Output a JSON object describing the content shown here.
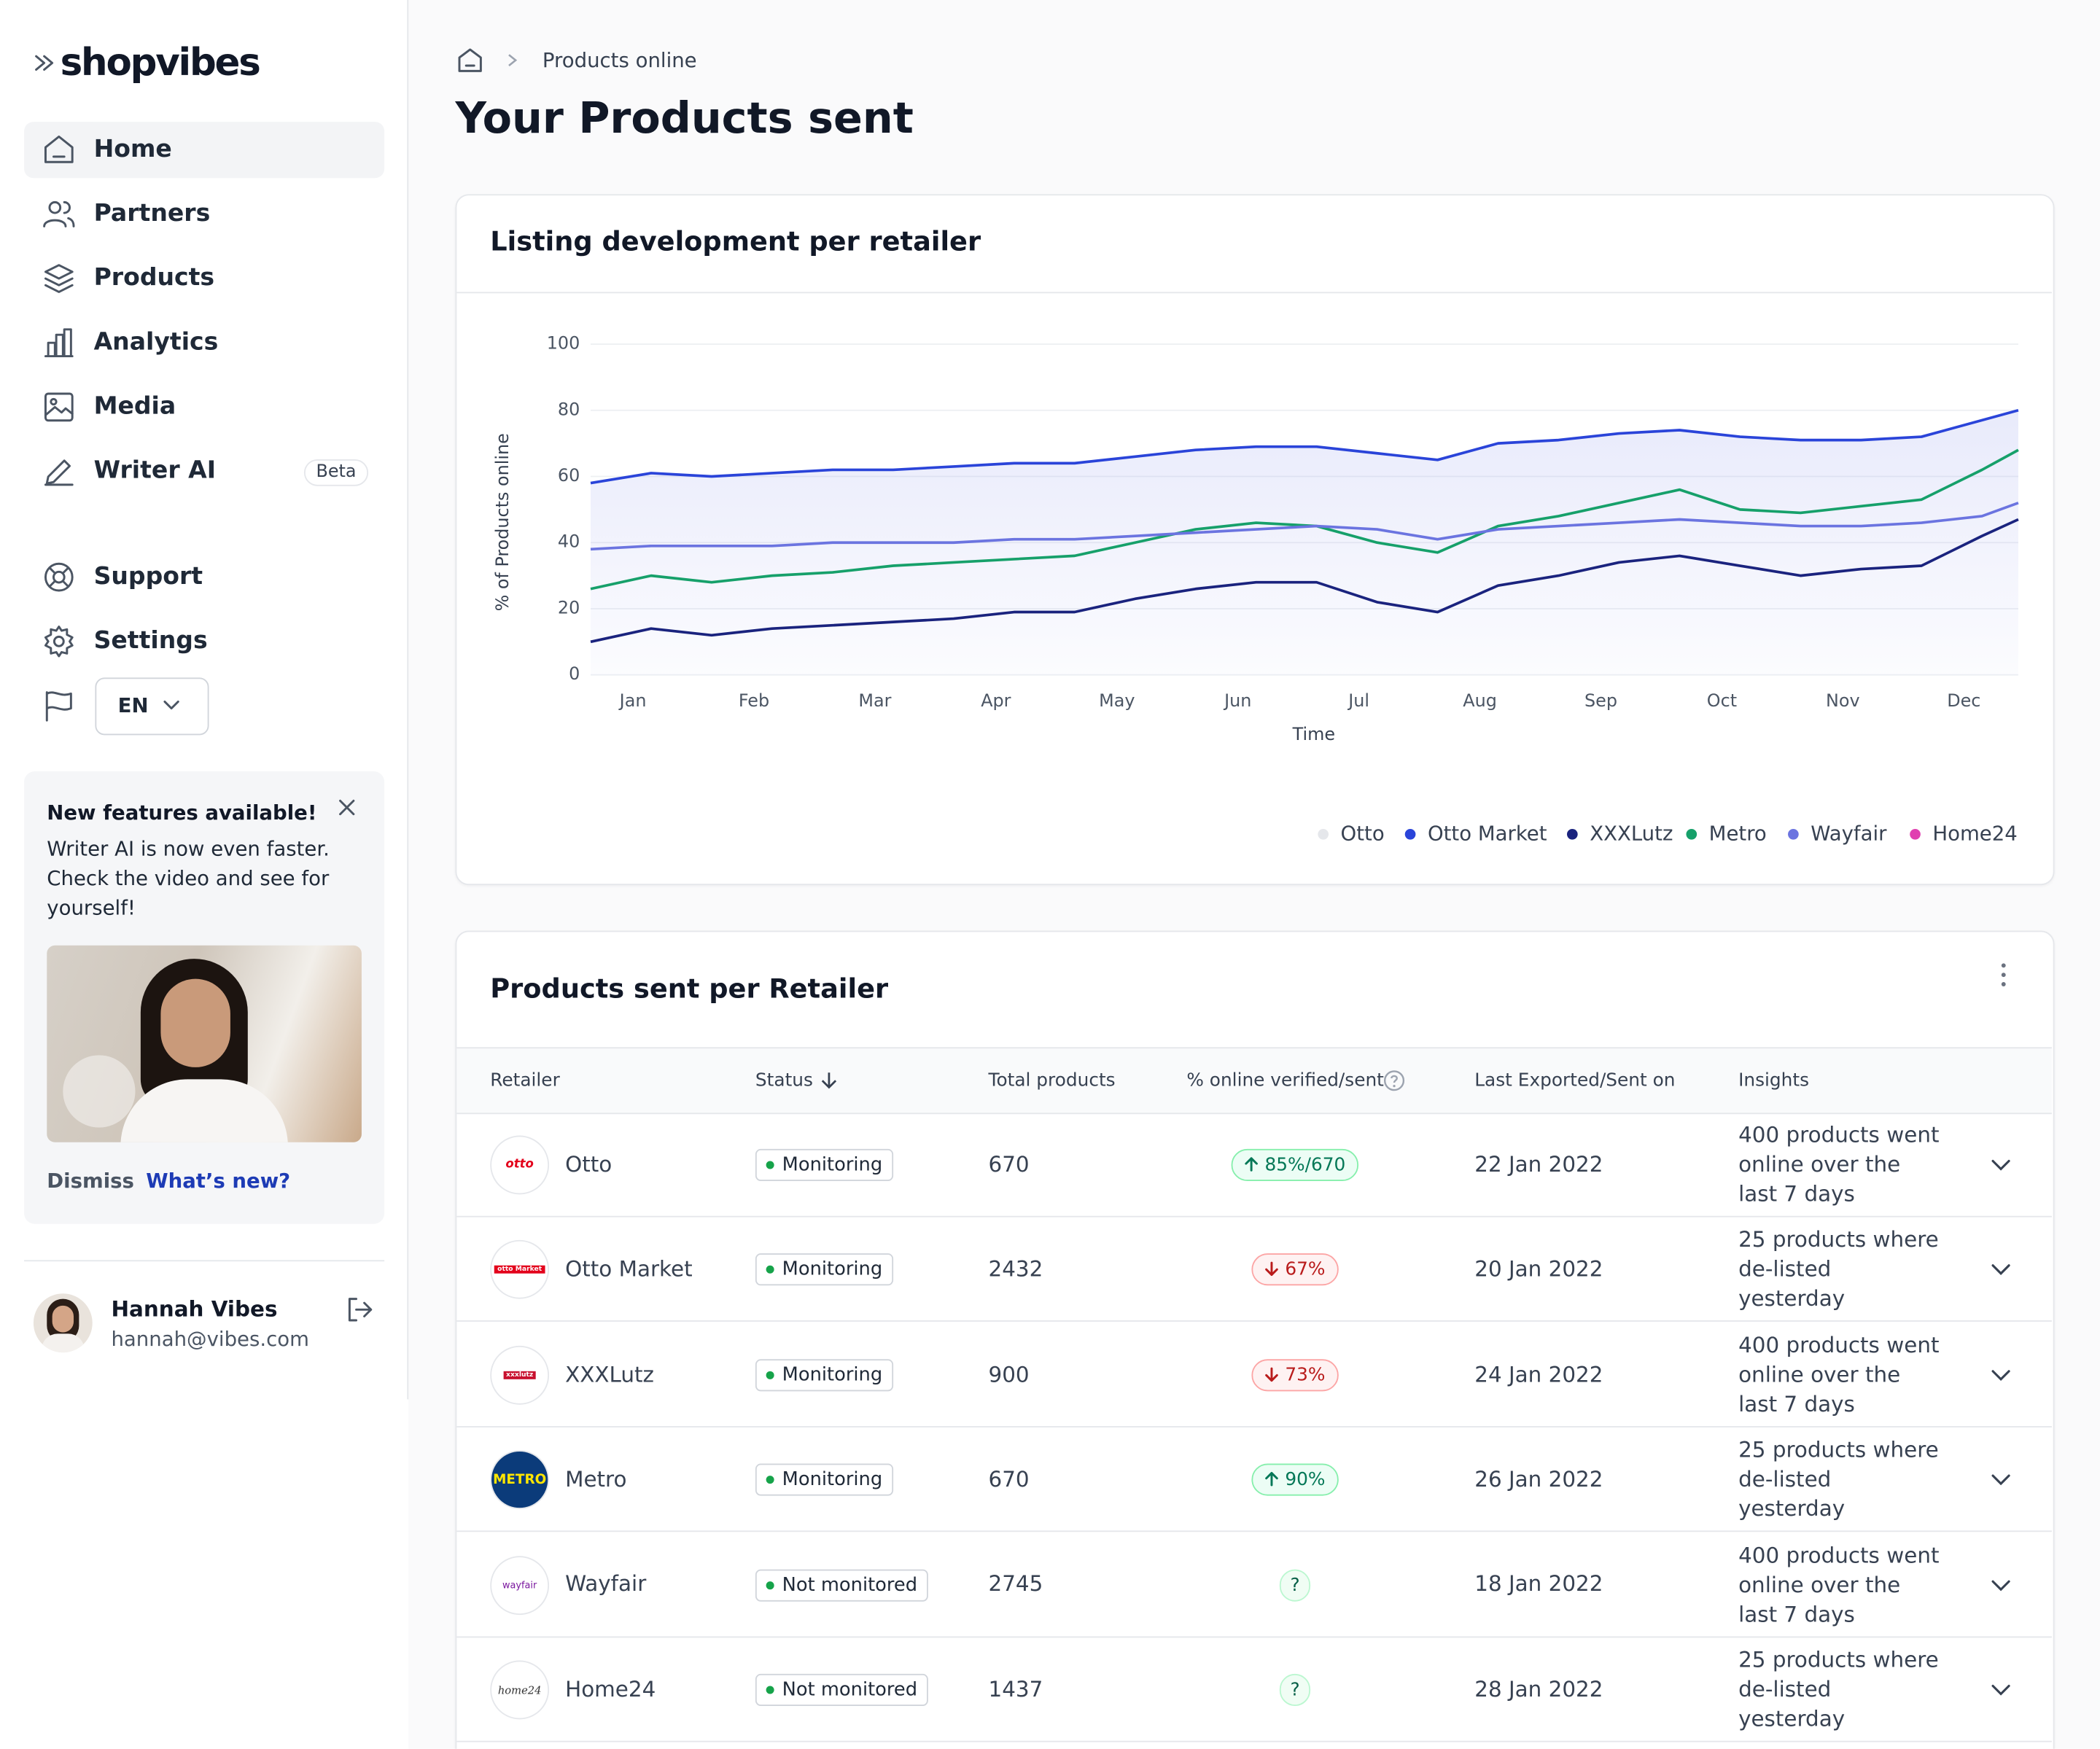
{
  "sidebar": {
    "logo": "shopvibes",
    "nav": [
      {
        "label": "Home"
      },
      {
        "label": "Partners"
      },
      {
        "label": "Products"
      },
      {
        "label": "Analytics"
      },
      {
        "label": "Media"
      },
      {
        "label": "Writer AI",
        "badge": "Beta"
      }
    ],
    "secondary": [
      {
        "label": "Support"
      },
      {
        "label": "Settings"
      }
    ],
    "language": "EN",
    "promo": {
      "title": "New features available!",
      "text": "Writer AI is now even faster. Check the video and see for yourself!",
      "dismiss": "Dismiss",
      "link": "What’s new?"
    },
    "user": {
      "name": "Hannah Vibes",
      "email": "hannah@vibes.com"
    }
  },
  "breadcrumb": "Products online",
  "title": "Your Products sent",
  "chart_card_title": "Listing development per retailer",
  "chart_data": {
    "type": "line",
    "xlabel": "Time",
    "ylabel": "% of Products online",
    "x": [
      -0.35,
      0.15,
      0.65,
      1.15,
      1.65,
      2.15,
      2.65,
      3.15,
      3.65,
      4.15,
      4.65,
      5.15,
      5.65,
      6.15,
      6.65,
      7.15,
      7.65,
      8.15,
      8.65,
      9.15,
      9.65,
      10.15,
      10.65,
      11.15,
      11.45
    ],
    "xlim": [
      -0.35,
      11.45
    ],
    "xticks": [
      {
        "value": 0,
        "label": "Jan"
      },
      {
        "value": 1,
        "label": "Feb"
      },
      {
        "value": 2,
        "label": "Mar"
      },
      {
        "value": 3,
        "label": "Apr"
      },
      {
        "value": 4,
        "label": "May"
      },
      {
        "value": 5,
        "label": "Jun"
      },
      {
        "value": 6,
        "label": "Jul"
      },
      {
        "value": 7,
        "label": "Aug"
      },
      {
        "value": 8,
        "label": "Sep"
      },
      {
        "value": 9,
        "label": "Oct"
      },
      {
        "value": 10,
        "label": "Nov"
      },
      {
        "value": 11,
        "label": "Dec"
      }
    ],
    "ylim": [
      0,
      100
    ],
    "yticks": [
      0,
      20,
      40,
      60,
      80,
      100
    ],
    "grid": true,
    "legend": "bottom-right",
    "area_series": 1,
    "series": [
      {
        "name": "Otto",
        "color": "#e5e7eb",
        "values": [
          null,
          null,
          null,
          null,
          null,
          null,
          null,
          null,
          null,
          null,
          null,
          null,
          null,
          null,
          null,
          null,
          null,
          null,
          null,
          null,
          null,
          null,
          null,
          null,
          null
        ]
      },
      {
        "name": "Otto Market",
        "color": "#2a44d9",
        "values": [
          58,
          61,
          60,
          61,
          62,
          62,
          63,
          64,
          64,
          66,
          68,
          69,
          69,
          67,
          65,
          70,
          71,
          73,
          74,
          72,
          71,
          71,
          72,
          77,
          80
        ]
      },
      {
        "name": "XXXLutz",
        "color": "#1a237e",
        "values": [
          10,
          14,
          12,
          14,
          15,
          16,
          17,
          19,
          19,
          23,
          26,
          28,
          28,
          22,
          19,
          27,
          30,
          34,
          36,
          33,
          30,
          32,
          33,
          42,
          47
        ]
      },
      {
        "name": "Metro",
        "color": "#16a06a",
        "values": [
          26,
          30,
          28,
          30,
          31,
          33,
          34,
          35,
          36,
          40,
          44,
          46,
          45,
          40,
          37,
          45,
          48,
          52,
          56,
          50,
          49,
          51,
          53,
          62,
          68
        ]
      },
      {
        "name": "Wayfair",
        "color": "#6b74e0",
        "values": [
          38,
          39,
          39,
          39,
          40,
          40,
          40,
          41,
          41,
          42,
          43,
          44,
          45,
          44,
          41,
          44,
          45,
          46,
          47,
          46,
          45,
          45,
          46,
          48,
          52
        ]
      },
      {
        "name": "Home24",
        "color": "#e040b0",
        "values": [
          null,
          null,
          null,
          null,
          null,
          null,
          null,
          null,
          null,
          null,
          null,
          null,
          null,
          null,
          null,
          null,
          null,
          null,
          null,
          null,
          null,
          null,
          null,
          null,
          null
        ]
      }
    ]
  },
  "table": {
    "title": "Products sent per Retailer",
    "columns": [
      "Retailer",
      "Status",
      "Total products",
      "% online verified/sent",
      "Last Exported/Sent on",
      "Insights"
    ],
    "rows": [
      {
        "logo": "otto",
        "retailer": "Otto",
        "status": "Monitoring",
        "total": 670,
        "online": "85%/670",
        "trend": "up",
        "date": "22 Jan 2022",
        "insights": "400 products went online over the last 7 days"
      },
      {
        "logo": "otto Market",
        "retailer": "Otto Market",
        "status": "Monitoring",
        "total": 2432,
        "online": "67%",
        "trend": "down",
        "date": "20 Jan 2022",
        "insights": "25 products where de-listed yesterday"
      },
      {
        "logo": "xxxlutz",
        "retailer": "XXXLutz",
        "status": "Monitoring",
        "total": 900,
        "online": "73%",
        "trend": "down",
        "date": "24 Jan 2022",
        "insights": "400 products went online over the last 7 days"
      },
      {
        "logo": "METRO",
        "retailer": "Metro",
        "status": "Monitoring",
        "total": 670,
        "online": "90%",
        "trend": "up",
        "date": "26 Jan 2022",
        "insights": "25 products where de-listed yesterday"
      },
      {
        "logo": "wayfair",
        "retailer": "Wayfair",
        "status": "Not monitored",
        "total": 2745,
        "online": "?",
        "trend": "unknown",
        "date": "18 Jan 2022",
        "insights": "400 products went online over the last 7 days"
      },
      {
        "logo": "home24",
        "retailer": "Home24",
        "status": "Not monitored",
        "total": 1437,
        "online": "?",
        "trend": "unknown",
        "date": "28 Jan 2022",
        "insights": "25 products where de-listed yesterday"
      }
    ]
  }
}
